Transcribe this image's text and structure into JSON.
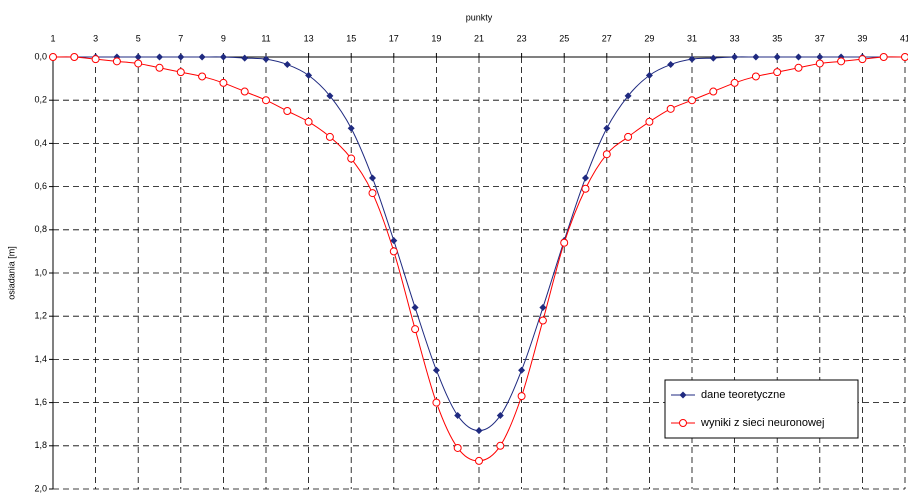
{
  "chart_data": {
    "type": "line",
    "x_label": "punkty",
    "y_label": "osiadania [m]",
    "x": [
      1,
      2,
      3,
      4,
      5,
      6,
      7,
      8,
      9,
      10,
      11,
      12,
      13,
      14,
      15,
      16,
      17,
      18,
      19,
      20,
      21,
      22,
      23,
      24,
      25,
      26,
      27,
      28,
      29,
      30,
      31,
      32,
      33,
      34,
      35,
      36,
      37,
      38,
      39,
      40,
      41
    ],
    "series": [
      {
        "name": "dane teoretyczne",
        "color": "#1f2a80",
        "marker": "diamond",
        "values": [
          0,
          0,
          0,
          0,
          0,
          0,
          0,
          0,
          0,
          0.005,
          0.01,
          0.035,
          0.085,
          0.18,
          0.33,
          0.56,
          0.85,
          1.16,
          1.45,
          1.66,
          1.73,
          1.66,
          1.45,
          1.16,
          0.85,
          0.56,
          0.33,
          0.18,
          0.085,
          0.035,
          0.01,
          0.005,
          0,
          0,
          0,
          0,
          0,
          0,
          0,
          0,
          0
        ]
      },
      {
        "name": "wyniki z sieci neuronowej",
        "color": "#ff0000",
        "marker": "circle",
        "values": [
          0,
          0,
          0.01,
          0.02,
          0.03,
          0.05,
          0.07,
          0.09,
          0.12,
          0.16,
          0.2,
          0.25,
          0.3,
          0.37,
          0.47,
          0.63,
          0.9,
          1.26,
          1.6,
          1.81,
          1.87,
          1.8,
          1.57,
          1.22,
          0.86,
          0.61,
          0.45,
          0.37,
          0.3,
          0.24,
          0.2,
          0.16,
          0.12,
          0.09,
          0.07,
          0.05,
          0.03,
          0.02,
          0.01,
          0,
          0
        ]
      }
    ],
    "xlim": [
      1,
      41
    ],
    "xticks": [
      1,
      3,
      5,
      7,
      9,
      11,
      13,
      15,
      17,
      19,
      21,
      23,
      25,
      27,
      29,
      31,
      33,
      35,
      37,
      39,
      41
    ],
    "ylim": [
      0,
      2
    ],
    "y_inverted": true,
    "x_axis_position": "top",
    "yticks": [
      {
        "value": 0,
        "label": "0,0"
      },
      {
        "value": 0.2,
        "label": "0,2"
      },
      {
        "value": 0.4,
        "label": "0,4"
      },
      {
        "value": 0.6,
        "label": "0,6"
      },
      {
        "value": 0.8,
        "label": "0,8"
      },
      {
        "value": 1,
        "label": "1,0"
      },
      {
        "value": 1.2,
        "label": "1,2"
      },
      {
        "value": 1.4,
        "label": "1,4"
      },
      {
        "value": 1.6,
        "label": "1,6"
      },
      {
        "value": 1.8,
        "label": "1,8"
      },
      {
        "value": 2,
        "label": "2,0"
      }
    ],
    "grid": true,
    "legend_position": "lower right"
  }
}
